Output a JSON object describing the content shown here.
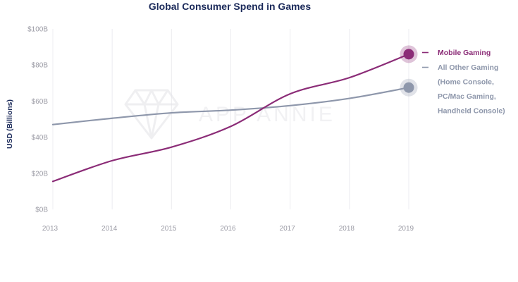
{
  "chart_data": {
    "type": "line",
    "title": "Global Consumer Spend in Games",
    "ylabel": "USD (Billions)",
    "xlabel": "",
    "x": [
      "2013",
      "2014",
      "2015",
      "2016",
      "2017",
      "2018",
      "2019"
    ],
    "x_ticks": [
      "2013",
      "2014",
      "2015",
      "2016",
      "2017",
      "2018",
      "2019"
    ],
    "ylim": [
      0,
      100
    ],
    "y_ticks": [
      0,
      20,
      40,
      60,
      80,
      100
    ],
    "y_tick_labels": [
      "$0B",
      "$20B",
      "$40B",
      "$60B",
      "$80B",
      "$100B"
    ],
    "grid": "vertical",
    "legend_position": "right",
    "series": [
      {
        "name": "Mobile Gaming",
        "color": "#8B2C77",
        "values": [
          15.5,
          27,
          34.5,
          46,
          64,
          73,
          86
        ]
      },
      {
        "name": "All Other Gaming",
        "name_lines": [
          "All Other Gaming",
          "(Home Console,",
          "PC/Mac Gaming,",
          "Handheld Console)"
        ],
        "color": "#8E97AB",
        "values": [
          47,
          50.5,
          53.5,
          55,
          57.5,
          61.5,
          67.5
        ]
      }
    ],
    "colors": {
      "title": "#1B2A5A",
      "grid": "#ececf0",
      "ticks": "#9a9aa4"
    },
    "watermark": "APP ANNIE",
    "watermark_icon": "diamond-logo-icon"
  }
}
